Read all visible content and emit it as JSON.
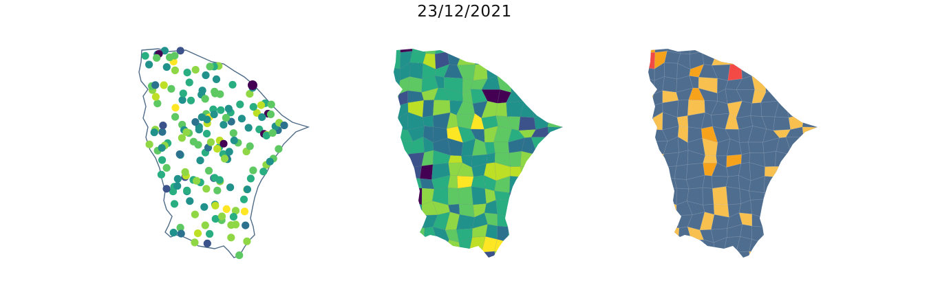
{
  "title": "23/12/2021",
  "colors": {
    "background": "#ffffff",
    "outline": "#4d6a87",
    "alert_base": "#4f6d8f",
    "alert_moderate": "#f8c04e",
    "alert_high": "#f7a21b",
    "alert_critical": "#f44a45",
    "viridis": [
      "#440154",
      "#3b528b",
      "#2c728e",
      "#21918c",
      "#28ae80",
      "#5ec962",
      "#8fd744",
      "#bddf26",
      "#fde725"
    ]
  },
  "panels": [
    {
      "name": "station-points",
      "kind": "scatter-on-outline"
    },
    {
      "name": "municipality-choropleth",
      "kind": "viridis-choropleth"
    },
    {
      "name": "alert-levels",
      "kind": "categorical-choropleth"
    }
  ]
}
